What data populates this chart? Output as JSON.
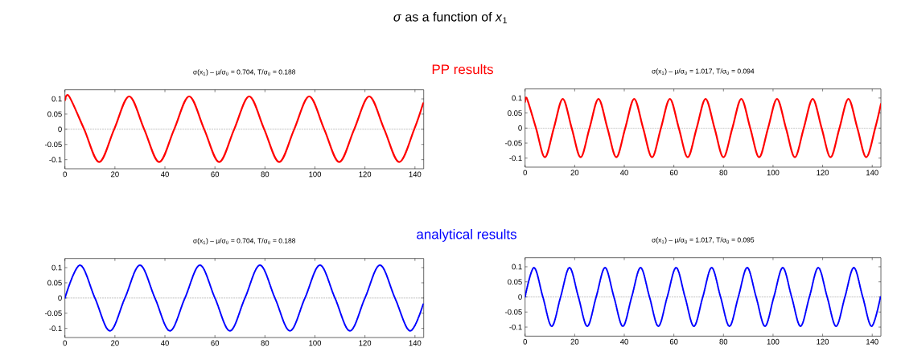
{
  "chart_data": [
    {
      "type": "line",
      "title": "σ(x$_{1}$)   –   μ/σ$_{0}$ = 0.704, T/σ$_{0}$ = 0.188",
      "annotations": [
        "*σ* as a function of *x*$_{1}$",
        "PP results"
      ],
      "x": [
        0,
        1.7,
        7.7,
        13.7,
        19.7,
        25.7,
        31.7,
        37.7,
        43.7,
        49.7,
        55.7,
        61.7,
        67.7,
        73.7,
        79.7,
        85.7,
        91.7,
        97.7,
        103.7,
        109.7,
        115.7,
        121.7,
        127.7,
        133.7,
        139.7,
        143.3
      ],
      "series": [
        {
          "color": "#ff0000",
          "values": [
            0.095,
            0.108,
            0,
            -0.108,
            0,
            0.108,
            0,
            -0.108,
            0,
            0.108,
            0,
            -0.108,
            0,
            0.108,
            0,
            -0.108,
            0,
            0.108,
            0,
            -0.108,
            0,
            0.108,
            0,
            -0.108,
            0,
            0.086
          ]
        }
      ],
      "line_style": "solid",
      "xlim": [
        0,
        143.5
      ],
      "ylim": [
        -0.13,
        0.13
      ],
      "xticks": [
        0,
        20,
        40,
        60,
        80,
        100,
        120,
        140
      ],
      "yticks": [
        -0.1,
        -0.05,
        0,
        0.05,
        0.1
      ],
      "ref_lines": [
        {
          "axis": "y",
          "value": 0,
          "color": "#000000",
          "line_style": "dotted"
        }
      ]
    },
    {
      "type": "line",
      "title": "σ(x$_{1}$)   –   μ/σ$_{0}$ = 1.017, T/σ$_{0}$ = 0.094",
      "x": [
        0,
        0.8,
        4.4,
        8.0,
        11.6,
        15.2,
        18.8,
        22.4,
        26.0,
        29.6,
        33.2,
        36.8,
        40.4,
        44.0,
        47.6,
        51.2,
        54.8,
        58.4,
        62.0,
        65.6,
        69.2,
        72.8,
        76.4,
        80.0,
        83.6,
        87.2,
        90.8,
        94.4,
        98.0,
        101.6,
        105.2,
        108.8,
        112.4,
        116.0,
        119.6,
        123.2,
        126.8,
        130.4,
        134.0,
        137.6,
        141.2,
        143.5
      ],
      "series": [
        {
          "color": "#ff0000",
          "values": [
            0.087,
            0.097,
            0,
            -0.097,
            0,
            0.097,
            0,
            -0.097,
            0,
            0.097,
            0,
            -0.097,
            0,
            0.097,
            0,
            -0.097,
            0,
            0.097,
            0,
            -0.097,
            0,
            0.097,
            0,
            -0.097,
            0,
            0.097,
            0,
            -0.097,
            0,
            0.097,
            0,
            -0.097,
            0,
            0.097,
            0,
            -0.097,
            0,
            0.097,
            0,
            -0.097,
            0,
            0.08
          ]
        }
      ],
      "line_style": "solid",
      "xlim": [
        0,
        143.5
      ],
      "ylim": [
        -0.13,
        0.13
      ],
      "xticks": [
        0,
        20,
        40,
        60,
        80,
        100,
        120,
        140
      ],
      "yticks": [
        -0.1,
        -0.05,
        0,
        0.05,
        0.1
      ],
      "ref_lines": [
        {
          "axis": "y",
          "value": 0,
          "color": "#000000",
          "line_style": "dotted"
        }
      ]
    },
    {
      "type": "line",
      "title": "σ(x$_{1}$)   –   μ/σ$_{0}$ = 0.704, T/σ$_{0}$ = 0.188",
      "annotations": [
        "analytical results"
      ],
      "x": [
        0,
        6,
        12,
        18,
        24,
        30,
        36,
        42,
        48,
        54,
        60,
        66,
        72,
        78,
        84,
        90,
        96,
        102,
        108,
        114,
        120,
        126,
        132,
        138,
        143.3
      ],
      "series": [
        {
          "color": "#0000ff",
          "values": [
            0,
            0.108,
            0,
            -0.108,
            0,
            0.108,
            0,
            -0.108,
            0,
            0.108,
            0,
            -0.108,
            0,
            0.108,
            0,
            -0.108,
            0,
            0.108,
            0,
            -0.108,
            0,
            0.108,
            0,
            -0.108,
            -0.02
          ]
        }
      ],
      "line_style": "dotted",
      "xlim": [
        0,
        143.5
      ],
      "ylim": [
        -0.13,
        0.13
      ],
      "xticks": [
        0,
        20,
        40,
        60,
        80,
        100,
        120,
        140
      ],
      "yticks": [
        -0.1,
        -0.05,
        0,
        0.05,
        0.1
      ],
      "ref_lines": [
        {
          "axis": "y",
          "value": 0,
          "color": "#000000",
          "line_style": "dotted"
        }
      ]
    },
    {
      "type": "line",
      "title": "σ(x$_{1}$)   –   μ/σ$_{0}$ = 1.017, T/σ$_{0}$ = 0.095",
      "x": [
        0,
        3.58,
        7.17,
        10.75,
        14.33,
        17.92,
        21.5,
        25.08,
        28.67,
        32.25,
        35.83,
        39.42,
        43,
        46.58,
        50.17,
        53.75,
        57.33,
        60.92,
        64.5,
        68.08,
        71.67,
        75.25,
        78.83,
        82.42,
        86,
        89.58,
        93.17,
        96.75,
        100.33,
        103.92,
        107.5,
        111.08,
        114.67,
        118.25,
        121.83,
        125.42,
        129,
        132.58,
        136.17,
        139.75,
        143.33
      ],
      "series": [
        {
          "color": "#0000ff",
          "values": [
            0,
            0.097,
            0,
            -0.097,
            0,
            0.097,
            0,
            -0.097,
            0,
            0.097,
            0,
            -0.097,
            0,
            0.097,
            0,
            -0.097,
            0,
            0.097,
            0,
            -0.097,
            0,
            0.097,
            0,
            -0.097,
            0,
            0.097,
            0,
            -0.097,
            0,
            0.097,
            0,
            -0.097,
            0,
            0.097,
            0,
            -0.097,
            0,
            0.097,
            0,
            -0.097,
            0
          ]
        }
      ],
      "line_style": "dotted",
      "xlim": [
        0,
        143.5
      ],
      "ylim": [
        -0.13,
        0.13
      ],
      "xticks": [
        0,
        20,
        40,
        60,
        80,
        100,
        120,
        140
      ],
      "yticks": [
        -0.1,
        -0.05,
        0,
        0.05,
        0.1
      ],
      "ref_lines": [
        {
          "axis": "y",
          "value": 0,
          "color": "#000000",
          "line_style": "dotted"
        }
      ]
    }
  ]
}
